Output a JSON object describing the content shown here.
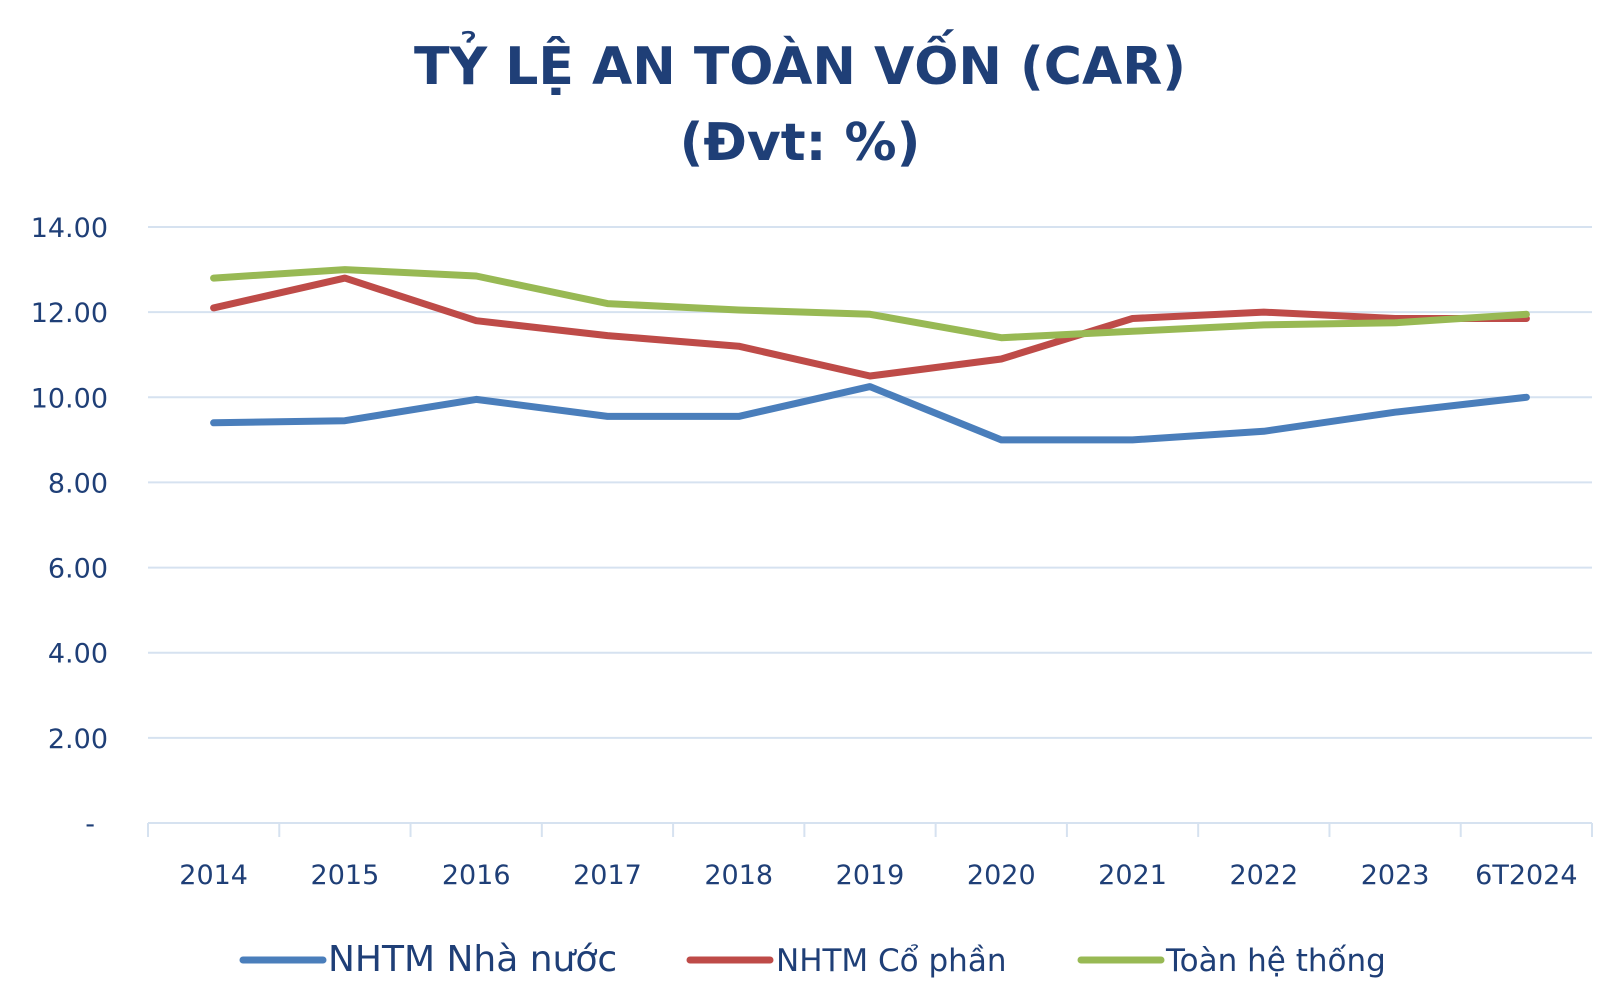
{
  "chart_data": {
    "type": "line",
    "title": "TỶ LỆ AN TOÀN VỐN (CAR)",
    "subtitle": "(Đvt: %)",
    "categories": [
      "2014",
      "2015",
      "2016",
      "2017",
      "2018",
      "2019",
      "2020",
      "2021",
      "2022",
      "2023",
      "6T2024"
    ],
    "ylim": [
      0,
      14
    ],
    "yticks": [
      0,
      2,
      4,
      6,
      8,
      10,
      12,
      14
    ],
    "ytick_labels": [
      "-",
      "2.00",
      "4.00",
      "6.00",
      "8.00",
      "10.00",
      "12.00",
      "14.00"
    ],
    "grid": true,
    "legend_position": "bottom",
    "series": [
      {
        "name": "NHTM Nhà nước",
        "color": "#4a7ebb",
        "values": [
          9.4,
          9.45,
          9.95,
          9.55,
          9.55,
          10.25,
          9.0,
          9.0,
          9.2,
          9.65,
          10.0
        ]
      },
      {
        "name": "NHTM Cổ phần",
        "color": "#be4b48",
        "values": [
          12.1,
          12.8,
          11.8,
          11.45,
          11.2,
          10.5,
          10.9,
          11.85,
          12.0,
          11.85,
          11.85
        ]
      },
      {
        "name": "Toàn hệ thống",
        "color": "#98b954",
        "values": [
          12.8,
          13.0,
          12.85,
          12.2,
          12.05,
          11.95,
          11.4,
          11.55,
          11.7,
          11.75,
          11.95
        ]
      }
    ]
  }
}
